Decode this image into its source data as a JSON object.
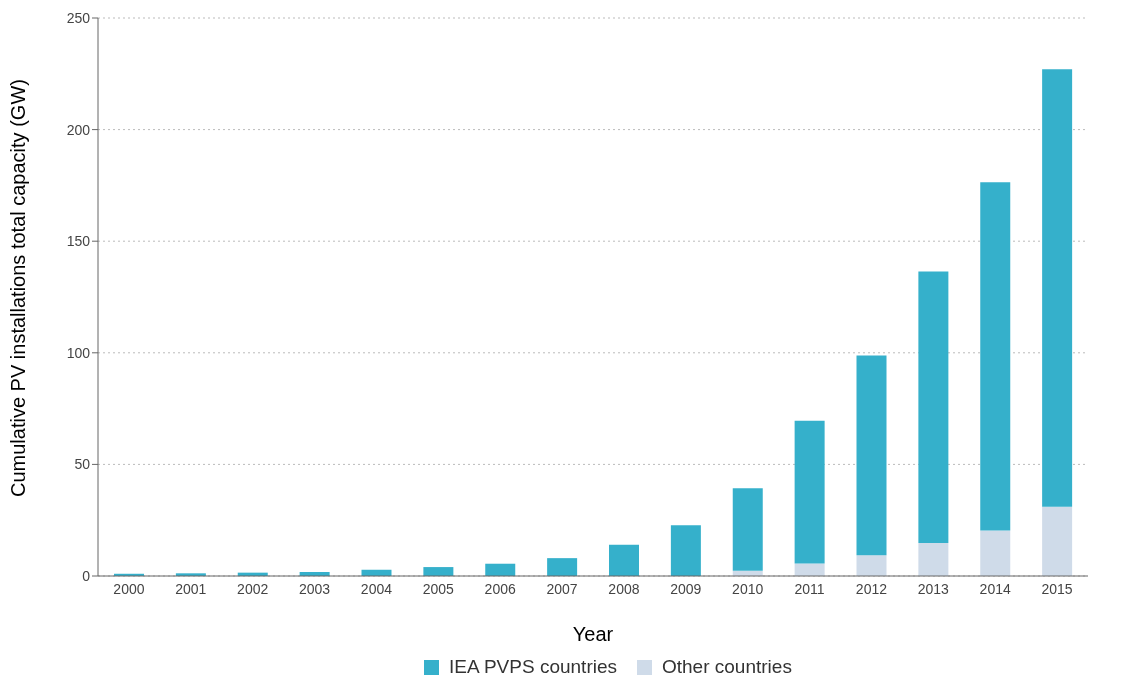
{
  "chart_data": {
    "type": "bar",
    "stacked": true,
    "xlabel": "Year",
    "ylabel": "Cumulative PV installations total capacity (GW)",
    "categories": [
      "2000",
      "2001",
      "2002",
      "2003",
      "2004",
      "2005",
      "2006",
      "2007",
      "2008",
      "2009",
      "2010",
      "2011",
      "2012",
      "2013",
      "2014",
      "2015"
    ],
    "series": [
      {
        "name": "Other countries",
        "color": "#cfdbe9",
        "values": [
          null,
          null,
          null,
          null,
          null,
          null,
          null,
          null,
          null,
          null,
          2.3,
          5.6,
          9.3,
          14.8,
          20.4,
          31
        ]
      },
      {
        "name": "IEA PVPS countries",
        "color": "#35b0cb",
        "values": [
          1,
          1.2,
          1.5,
          1.8,
          2.8,
          4,
          5.5,
          8,
          14,
          22.7,
          37,
          64,
          89.5,
          121.6,
          156,
          196
        ]
      }
    ],
    "ylim": [
      0,
      250
    ],
    "yticks": [
      0,
      50,
      100,
      150,
      200,
      250
    ],
    "grid": "y",
    "legend": "bottom"
  }
}
